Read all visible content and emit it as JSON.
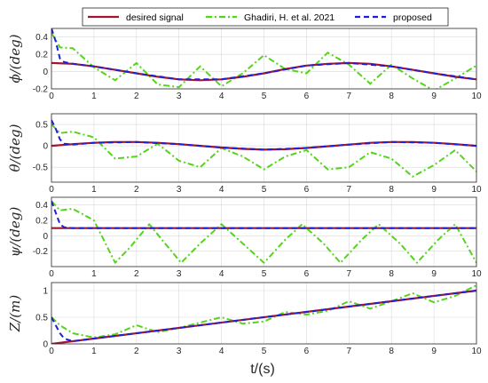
{
  "colors": {
    "desired": "#a2142f",
    "ghadiri": "#55d41c",
    "proposed": "#1f1fd6"
  },
  "legend": {
    "placement": "top-center",
    "entries": [
      "desired signal",
      "Ghadiri, H. et al. 2021",
      "proposed"
    ]
  },
  "x_axis": {
    "label": "t/(s)",
    "range": [
      0,
      10
    ],
    "ticks": [
      "0",
      "1",
      "2",
      "3",
      "4",
      "5",
      "6",
      "7",
      "8",
      "9",
      "10"
    ]
  },
  "chart_data": [
    {
      "type": "line",
      "ylabel": "ϕ/(deg)",
      "ylim": [
        -0.2,
        0.5
      ],
      "yticks": [
        "0.4",
        "0.2",
        "0",
        "-0.2"
      ],
      "grid": true,
      "series": [
        {
          "name": "desired signal",
          "x": [
            0,
            0.5,
            1,
            1.5,
            2,
            2.5,
            3,
            3.5,
            4,
            4.5,
            5,
            5.5,
            6,
            6.5,
            7,
            7.5,
            8,
            8.5,
            9,
            9.5,
            10
          ],
          "y": [
            0.1,
            0.09,
            0.06,
            0.02,
            -0.02,
            -0.06,
            -0.09,
            -0.1,
            -0.09,
            -0.06,
            -0.02,
            0.03,
            0.07,
            0.09,
            0.1,
            0.09,
            0.06,
            0.02,
            -0.02,
            -0.06,
            -0.09
          ]
        },
        {
          "name": "Ghadiri, H. et al. 2021",
          "x": [
            0,
            0.2,
            0.5,
            1,
            1.5,
            2,
            2.5,
            3,
            3.5,
            4,
            4.5,
            5,
            5.5,
            6,
            6.5,
            7,
            7.5,
            8,
            8.5,
            9,
            9.5,
            10
          ],
          "y": [
            0.45,
            0.28,
            0.27,
            0.05,
            -0.1,
            0.1,
            -0.15,
            -0.18,
            0.06,
            -0.17,
            -0.02,
            0.19,
            0.03,
            -0.02,
            0.22,
            0.08,
            -0.14,
            0.08,
            -0.08,
            -0.22,
            -0.08,
            0.07
          ]
        },
        {
          "name": "proposed",
          "x": [
            0,
            0.1,
            0.2,
            0.3,
            0.5,
            1,
            2,
            3,
            4,
            5,
            6,
            7,
            8,
            9,
            10
          ],
          "y": [
            0.5,
            0.35,
            0.15,
            0.11,
            0.09,
            0.06,
            -0.02,
            -0.09,
            -0.09,
            -0.02,
            0.07,
            0.1,
            0.06,
            -0.02,
            -0.09
          ]
        }
      ]
    },
    {
      "type": "line",
      "ylabel": "θ/(deg)",
      "ylim": [
        -0.85,
        0.75
      ],
      "yticks": [
        "0.5",
        "0",
        "-0.5"
      ],
      "grid": true,
      "series": [
        {
          "name": "desired signal",
          "x": [
            0,
            0.5,
            1,
            1.5,
            2,
            2.5,
            3,
            3.5,
            4,
            4.5,
            5,
            5.5,
            6,
            6.5,
            7,
            7.5,
            8,
            8.5,
            9,
            9.5,
            10
          ],
          "y": [
            0,
            0.04,
            0.07,
            0.09,
            0.09,
            0.07,
            0.04,
            0,
            -0.04,
            -0.07,
            -0.09,
            -0.08,
            -0.05,
            -0.01,
            0.03,
            0.07,
            0.09,
            0.09,
            0.07,
            0.04,
            0
          ]
        },
        {
          "name": "Ghadiri, H. et al. 2021",
          "x": [
            0,
            0.2,
            0.5,
            1,
            1.5,
            2,
            2.5,
            3,
            3.5,
            4,
            4.5,
            5,
            5.5,
            6,
            6.5,
            7,
            7.5,
            8,
            8.5,
            9,
            9.5,
            10
          ],
          "y": [
            0.5,
            0.3,
            0.33,
            0.2,
            -0.3,
            -0.25,
            0.05,
            -0.35,
            -0.5,
            -0.05,
            -0.25,
            -0.55,
            -0.25,
            -0.1,
            -0.55,
            -0.5,
            -0.15,
            -0.3,
            -0.72,
            -0.45,
            -0.1,
            -0.6
          ]
        },
        {
          "name": "proposed",
          "x": [
            0,
            0.1,
            0.2,
            0.3,
            0.5,
            1,
            2,
            3,
            4,
            5,
            6,
            7,
            8,
            9,
            10
          ],
          "y": [
            0.6,
            0.4,
            0.15,
            0.05,
            0.03,
            0.07,
            0.09,
            0.04,
            -0.04,
            -0.09,
            -0.05,
            0.03,
            0.09,
            0.07,
            0
          ]
        }
      ]
    },
    {
      "type": "line",
      "ylabel": "ψ/(deg)",
      "ylim": [
        -0.4,
        0.5
      ],
      "yticks": [
        "0.4",
        "0.2",
        "0",
        "-0.2"
      ],
      "grid": true,
      "series": [
        {
          "name": "desired signal",
          "x": [
            0,
            10
          ],
          "y": [
            0.1,
            0.1
          ]
        },
        {
          "name": "Ghadiri, H. et al. 2021",
          "x": [
            0,
            0.2,
            0.5,
            1,
            1.5,
            1.85,
            2.3,
            2.6,
            3.05,
            3.5,
            4,
            4.5,
            5,
            5.5,
            5.9,
            6.4,
            6.8,
            7.3,
            7.7,
            8.2,
            8.6,
            9.1,
            9.5,
            10
          ],
          "y": [
            0.45,
            0.33,
            0.35,
            0.2,
            -0.35,
            -0.15,
            0.15,
            -0.05,
            -0.35,
            -0.1,
            0.15,
            -0.1,
            -0.35,
            -0.05,
            0.15,
            -0.1,
            -0.35,
            -0.05,
            0.15,
            -0.1,
            -0.35,
            -0.05,
            0.15,
            -0.35
          ]
        },
        {
          "name": "proposed",
          "x": [
            0,
            0.1,
            0.2,
            0.3,
            0.5,
            10
          ],
          "y": [
            0.45,
            0.3,
            0.15,
            0.11,
            0.1,
            0.1
          ]
        }
      ]
    },
    {
      "type": "line",
      "ylabel": "Z/(m)",
      "ylim": [
        0,
        1.15
      ],
      "yticks": [
        "1",
        "0.5",
        "0"
      ],
      "grid": true,
      "series": [
        {
          "name": "desired signal",
          "x": [
            0,
            10
          ],
          "y": [
            0,
            1
          ]
        },
        {
          "name": "Ghadiri, H. et al. 2021",
          "x": [
            0,
            0.2,
            0.5,
            1,
            1.5,
            2,
            2.5,
            3,
            3.5,
            4,
            4.5,
            5,
            5.5,
            6,
            6.5,
            7,
            7.5,
            8,
            8.5,
            9,
            9.5,
            10
          ],
          "y": [
            0.5,
            0.35,
            0.2,
            0.12,
            0.18,
            0.35,
            0.22,
            0.3,
            0.4,
            0.5,
            0.38,
            0.42,
            0.6,
            0.55,
            0.62,
            0.8,
            0.66,
            0.8,
            0.95,
            0.78,
            0.9,
            1.1
          ]
        },
        {
          "name": "proposed",
          "x": [
            0,
            0.1,
            0.2,
            0.3,
            0.5,
            10
          ],
          "y": [
            0.5,
            0.35,
            0.2,
            0.1,
            0.05,
            1
          ]
        }
      ]
    }
  ]
}
